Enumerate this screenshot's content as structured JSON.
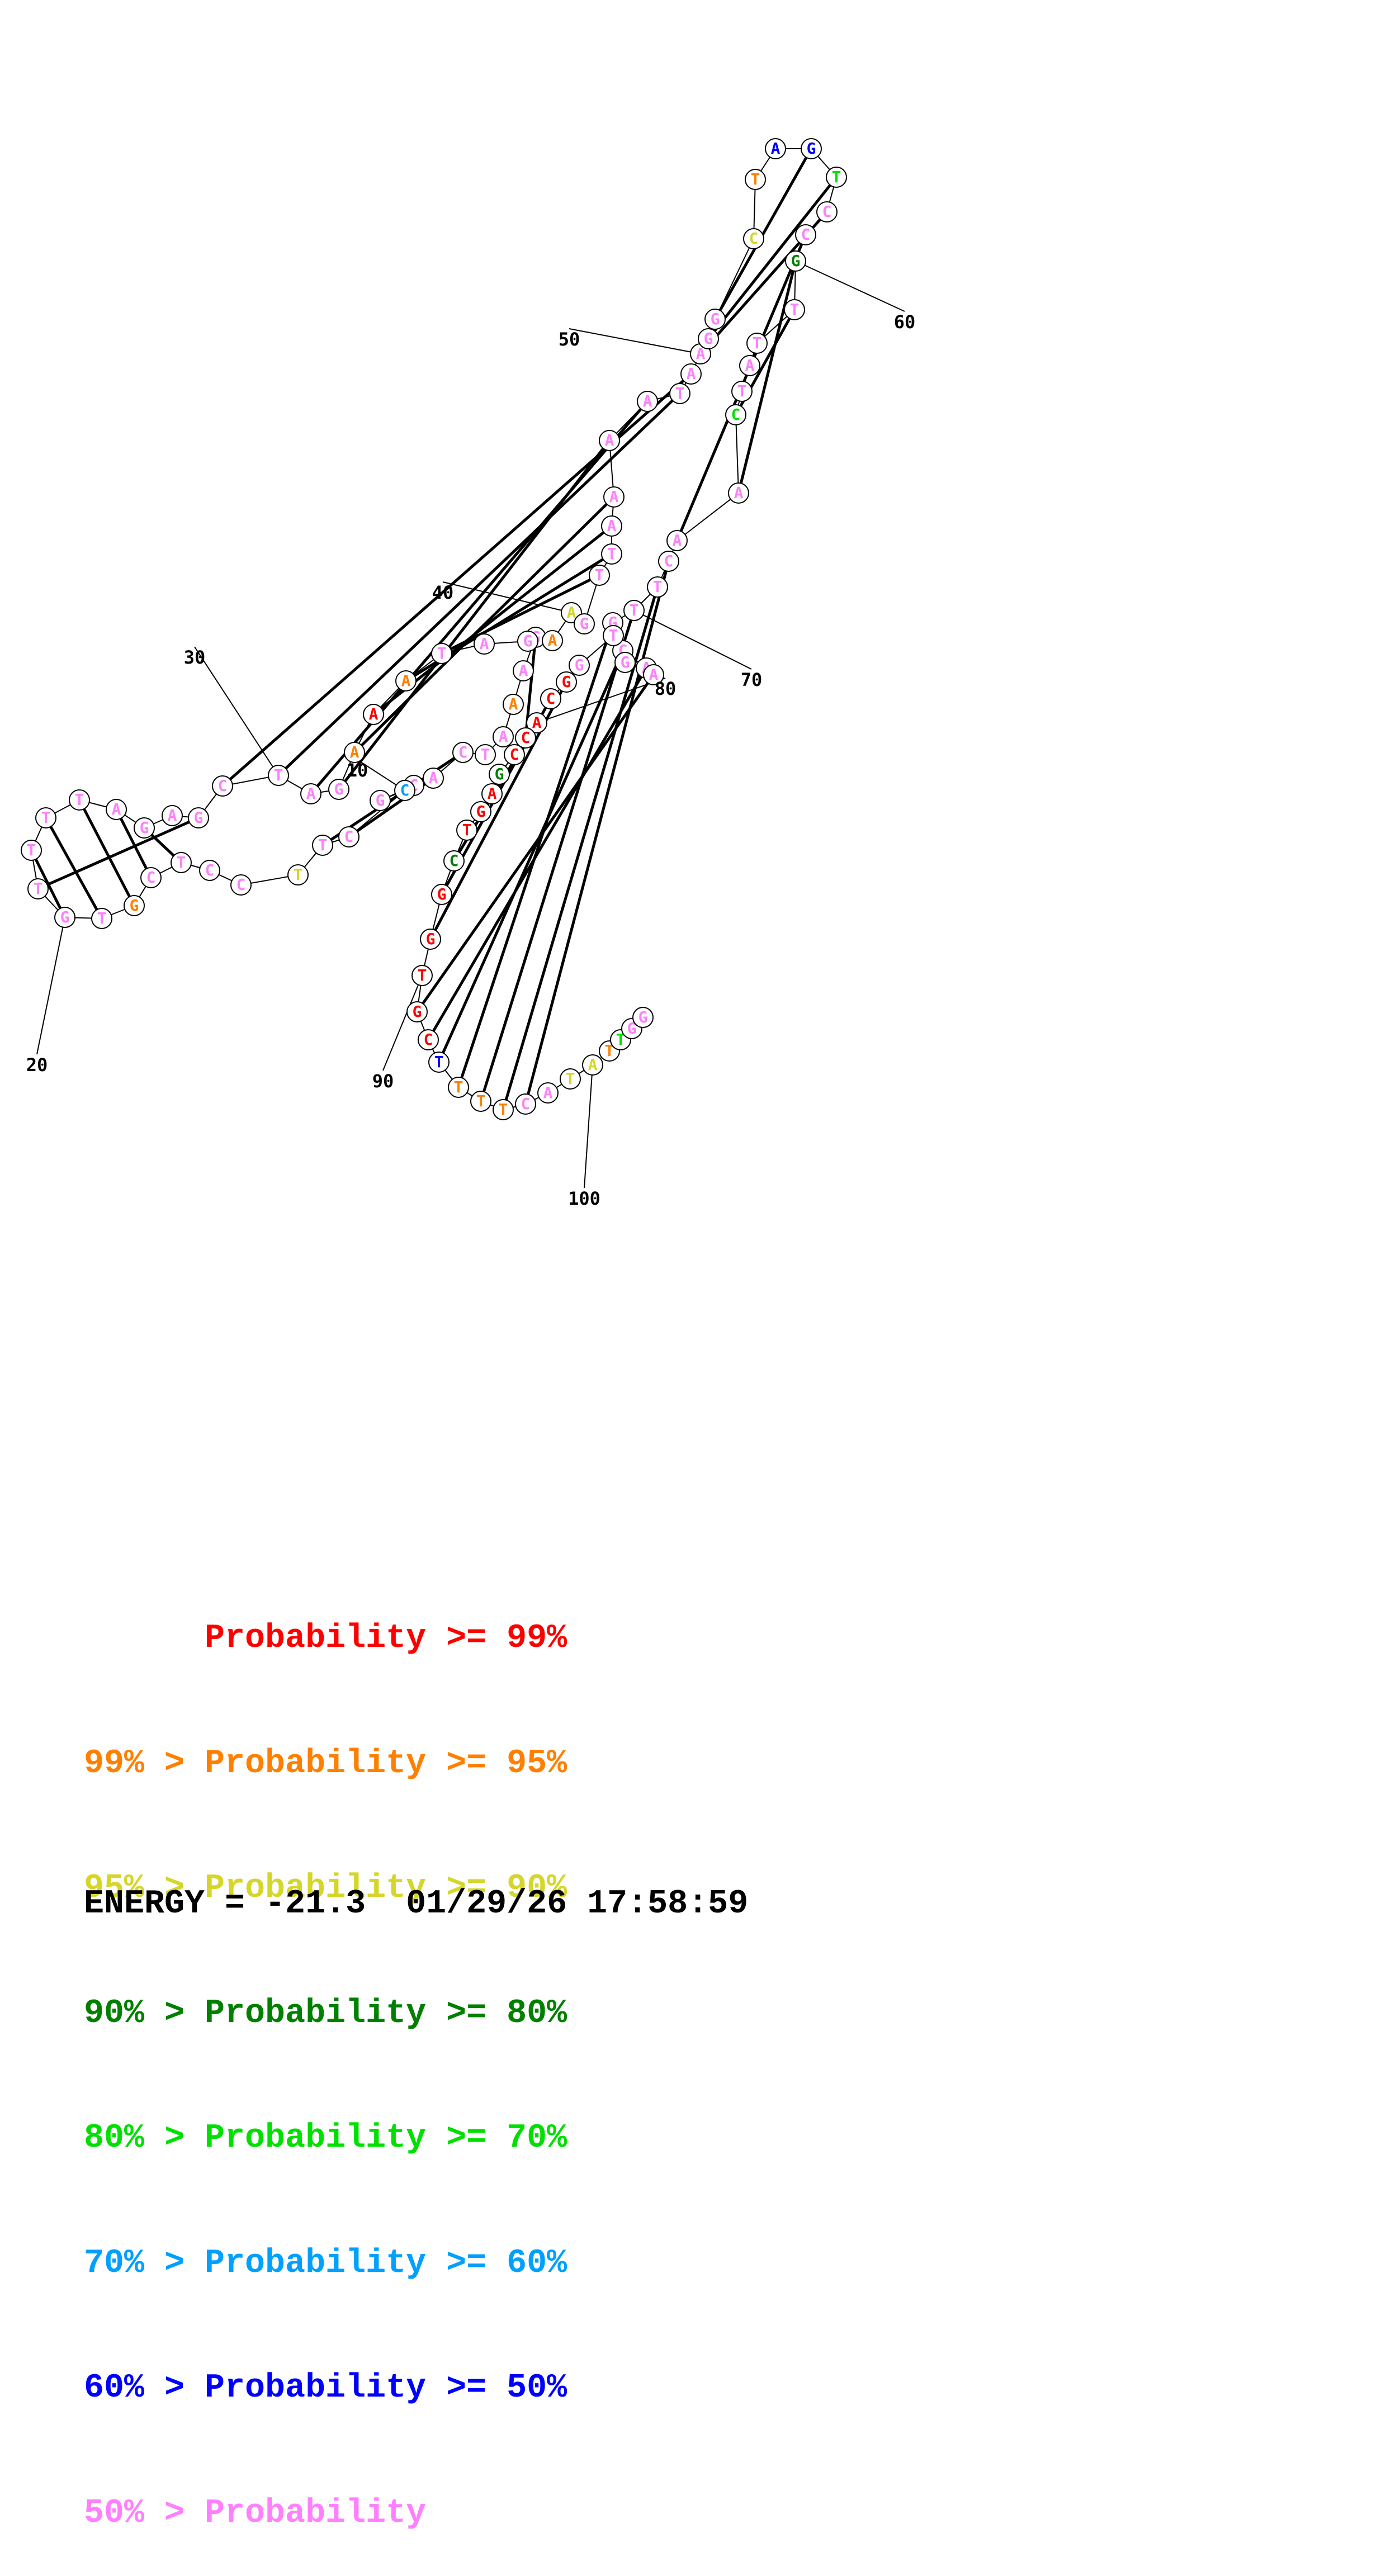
{
  "palette": {
    "red": "#ff0000",
    "orange": "#ff8000",
    "yellow": "#d6d62a",
    "darkgreen": "#008000",
    "green": "#00e000",
    "cyan": "#00a0ff",
    "blue": "#0000ff",
    "pink": "#ff80ff"
  },
  "nucleotides": [
    {
      "b": "G",
      "c": "pink"
    },
    {
      "b": "A",
      "c": "pink"
    },
    {
      "b": "A",
      "c": "orange"
    },
    {
      "b": "A",
      "c": "pink"
    },
    {
      "b": "T",
      "c": "pink"
    },
    {
      "b": "C",
      "c": "pink"
    },
    {
      "b": "A",
      "c": "pink"
    },
    {
      "b": "C",
      "c": "pink"
    },
    {
      "b": "G",
      "c": "pink"
    },
    {
      "b": "C",
      "c": "cyan"
    },
    {
      "b": "C",
      "c": "pink"
    },
    {
      "b": "T",
      "c": "pink"
    },
    {
      "b": "T",
      "c": "yellow"
    },
    {
      "b": "C",
      "c": "pink"
    },
    {
      "b": "C",
      "c": "pink"
    },
    {
      "b": "T",
      "c": "pink"
    },
    {
      "b": "C",
      "c": "pink"
    },
    {
      "b": "G",
      "c": "orange"
    },
    {
      "b": "T",
      "c": "pink"
    },
    {
      "b": "G",
      "c": "pink"
    },
    {
      "b": "T",
      "c": "pink"
    },
    {
      "b": "T",
      "c": "pink"
    },
    {
      "b": "T",
      "c": "pink"
    },
    {
      "b": "T",
      "c": "pink"
    },
    {
      "b": "A",
      "c": "pink"
    },
    {
      "b": "G",
      "c": "pink"
    },
    {
      "b": "A",
      "c": "pink"
    },
    {
      "b": "G",
      "c": "pink"
    },
    {
      "b": "C",
      "c": "pink"
    },
    {
      "b": "T",
      "c": "pink"
    },
    {
      "b": "A",
      "c": "pink"
    },
    {
      "b": "G",
      "c": "pink"
    },
    {
      "b": "A",
      "c": "orange"
    },
    {
      "b": "A",
      "c": "red"
    },
    {
      "b": "A",
      "c": "orange"
    },
    {
      "b": "T",
      "c": "pink"
    },
    {
      "b": "A",
      "c": "pink"
    },
    {
      "b": "G",
      "c": "pink"
    },
    {
      "b": "A",
      "c": "orange"
    },
    {
      "b": "A",
      "c": "yellow"
    },
    {
      "b": "G",
      "c": "pink"
    },
    {
      "b": "T",
      "c": "pink"
    },
    {
      "b": "T",
      "c": "pink"
    },
    {
      "b": "A",
      "c": "pink"
    },
    {
      "b": "A",
      "c": "pink"
    },
    {
      "b": "A",
      "c": "pink"
    },
    {
      "b": "A",
      "c": "pink"
    },
    {
      "b": "T",
      "c": "pink"
    },
    {
      "b": "A",
      "c": "pink"
    },
    {
      "b": "A",
      "c": "pink"
    },
    {
      "b": "G",
      "c": "pink"
    },
    {
      "b": "G",
      "c": "pink"
    },
    {
      "b": "C",
      "c": "yellow"
    },
    {
      "b": "T",
      "c": "orange"
    },
    {
      "b": "A",
      "c": "blue"
    },
    {
      "b": "G",
      "c": "blue"
    },
    {
      "b": "T",
      "c": "green"
    },
    {
      "b": "C",
      "c": "pink"
    },
    {
      "b": "C",
      "c": "pink"
    },
    {
      "b": "G",
      "c": "darkgreen"
    },
    {
      "b": "T",
      "c": "pink"
    },
    {
      "b": "T",
      "c": "pink"
    },
    {
      "b": "A",
      "c": "pink"
    },
    {
      "b": "T",
      "c": "pink"
    },
    {
      "b": "C",
      "c": "green"
    },
    {
      "b": "A",
      "c": "pink"
    },
    {
      "b": "A",
      "c": "pink"
    },
    {
      "b": "C",
      "c": "pink"
    },
    {
      "b": "T",
      "c": "pink"
    },
    {
      "b": "T",
      "c": "pink"
    },
    {
      "b": "G",
      "c": "pink"
    },
    {
      "b": "C",
      "c": "pink"
    },
    {
      "b": "A",
      "c": "pink"
    },
    {
      "b": "A",
      "c": "pink"
    },
    {
      "b": "G",
      "c": "pink"
    },
    {
      "b": "T",
      "c": "pink"
    },
    {
      "b": "G",
      "c": "pink"
    },
    {
      "b": "G",
      "c": "red"
    },
    {
      "b": "C",
      "c": "red"
    },
    {
      "b": "A",
      "c": "red"
    },
    {
      "b": "C",
      "c": "red"
    },
    {
      "b": "C",
      "c": "red"
    },
    {
      "b": "G",
      "c": "darkgreen"
    },
    {
      "b": "A",
      "c": "red"
    },
    {
      "b": "G",
      "c": "red"
    },
    {
      "b": "T",
      "c": "red"
    },
    {
      "b": "C",
      "c": "darkgreen"
    },
    {
      "b": "G",
      "c": "red"
    },
    {
      "b": "G",
      "c": "red"
    },
    {
      "b": "T",
      "c": "red"
    },
    {
      "b": "G",
      "c": "red"
    },
    {
      "b": "C",
      "c": "red"
    },
    {
      "b": "T",
      "c": "blue"
    },
    {
      "b": "T",
      "c": "orange"
    },
    {
      "b": "T",
      "c": "orange"
    },
    {
      "b": "T",
      "c": "orange"
    },
    {
      "b": "C",
      "c": "pink"
    },
    {
      "b": "A",
      "c": "pink"
    },
    {
      "b": "T",
      "c": "yellow"
    },
    {
      "b": "A",
      "c": "yellow"
    },
    {
      "b": "T",
      "c": "orange"
    },
    {
      "b": "T",
      "c": "green"
    },
    {
      "b": "G",
      "c": "pink"
    },
    {
      "b": "G",
      "c": "pink"
    }
  ],
  "base_pairs": [
    [
      1,
      81
    ],
    [
      6,
      12
    ],
    [
      7,
      11
    ],
    [
      16,
      26
    ],
    [
      17,
      25
    ],
    [
      18,
      24
    ],
    [
      19,
      23
    ],
    [
      20,
      22
    ],
    [
      21,
      28
    ],
    [
      29,
      49
    ],
    [
      30,
      48
    ],
    [
      31,
      47
    ],
    [
      32,
      46
    ],
    [
      33,
      45
    ],
    [
      34,
      44
    ],
    [
      35,
      43
    ],
    [
      36,
      42
    ],
    [
      50,
      58
    ],
    [
      51,
      57
    ],
    [
      52,
      56
    ],
    [
      59,
      67
    ],
    [
      60,
      66
    ],
    [
      61,
      65
    ],
    [
      68,
      97
    ],
    [
      69,
      96
    ],
    [
      70,
      95
    ],
    [
      71,
      94
    ],
    [
      72,
      93
    ],
    [
      73,
      92
    ],
    [
      74,
      91
    ],
    [
      78,
      89
    ],
    [
      79,
      88
    ],
    [
      80,
      87
    ]
  ],
  "index_labels": [
    {
      "text": "10",
      "at": 10
    },
    {
      "text": "20",
      "at": 20
    },
    {
      "text": "30",
      "at": 30
    },
    {
      "text": "40",
      "at": 40
    },
    {
      "text": "50",
      "at": 50
    },
    {
      "text": "60",
      "at": 60
    },
    {
      "text": "70",
      "at": 70
    },
    {
      "text": "80",
      "at": 80
    },
    {
      "text": "90",
      "at": 90
    },
    {
      "text": "100",
      "at": 100
    }
  ],
  "legend": [
    {
      "text": "      Probability >= 99%",
      "color": "red"
    },
    {
      "text": "99% > Probability >= 95%",
      "color": "orange"
    },
    {
      "text": "95% > Probability >= 90%",
      "color": "yellow"
    },
    {
      "text": "90% > Probability >= 80%",
      "color": "darkgreen"
    },
    {
      "text": "80% > Probability >= 70%",
      "color": "green"
    },
    {
      "text": "70% > Probability >= 60%",
      "color": "cyan"
    },
    {
      "text": "60% > Probability >= 50%",
      "color": "blue"
    },
    {
      "text": "50% > Probability",
      "color": "pink"
    }
  ],
  "energy_line": "ENERGY = -21.3  01/29/26 17:58:59"
}
